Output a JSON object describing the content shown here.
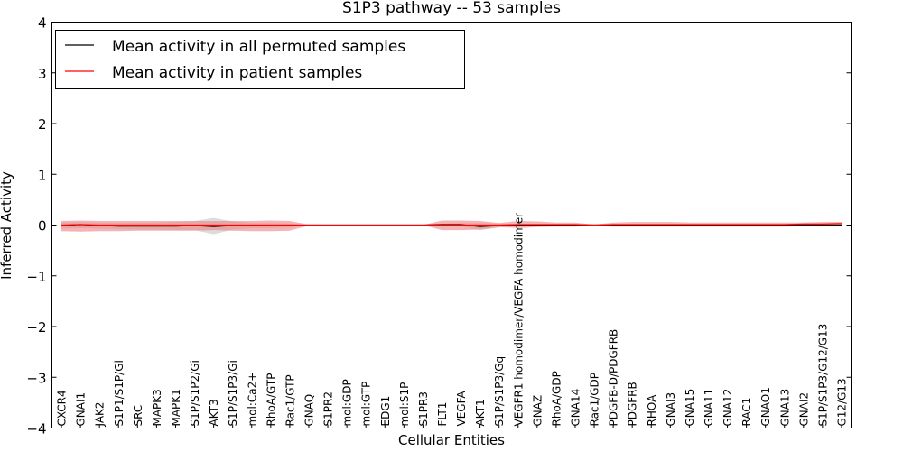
{
  "chart_data": {
    "type": "line",
    "title": "S1P3 pathway -- 53 samples",
    "xlabel": "Cellular Entities",
    "ylabel": "Inferred Activity",
    "ylim": [
      -4,
      4
    ],
    "yticks": [
      -4,
      -3,
      -2,
      -1,
      0,
      1,
      2,
      3,
      4
    ],
    "ytick_labels": [
      "−4",
      "−3",
      "−2",
      "−1",
      "0",
      "1",
      "2",
      "3",
      "4"
    ],
    "grid": false,
    "legend_position": "top-left",
    "categories": [
      "CXCR4",
      "GNAI1",
      "JAK2",
      "S1P1/S1P/Gi",
      "SRC",
      "MAPK3",
      "MAPK1",
      "S1P/S1P2/Gi",
      "AKT3",
      "S1P/S1P3/Gi",
      "mol:Ca2+",
      "RhoA/GTP",
      "Rac1/GTP",
      "GNAQ",
      "S1PR2",
      "mol:GDP",
      "mol:GTP",
      "EDG1",
      "mol:S1P",
      "S1PR3",
      "FLT1",
      "VEGFA",
      "AKT1",
      "S1P/S1P3/Gq",
      "VEGFR1 homodimer/VEGFA homodimer",
      "GNAZ",
      "RhoA/GDP",
      "GNA14",
      "Rac1/GDP",
      "PDGFB-D/PDGFRB",
      "PDGFRB",
      "RHOA",
      "GNAI3",
      "GNA15",
      "GNA11",
      "GNA12",
      "RAC1",
      "GNAO1",
      "GNA13",
      "GNAI2",
      "S1P/S1P3/G12/G13",
      "G12/G13"
    ],
    "series": [
      {
        "name": "Mean activity in all permuted samples",
        "color": "#000000",
        "values": [
          -0.01,
          0.01,
          -0.01,
          -0.02,
          -0.02,
          -0.02,
          -0.02,
          -0.01,
          -0.03,
          -0.01,
          -0.01,
          -0.01,
          -0.01,
          0,
          0,
          0,
          0,
          0,
          0,
          0,
          0.01,
          0.01,
          -0.03,
          -0.01,
          0,
          0,
          0,
          0,
          0,
          0,
          0,
          0,
          0,
          0,
          0,
          0,
          0,
          0,
          0,
          0,
          0,
          0
        ],
        "band_upper": [
          0.05,
          0.06,
          0.05,
          0.04,
          0.05,
          0.05,
          0.06,
          0.08,
          0.14,
          0.07,
          0.04,
          0.04,
          0.03,
          0,
          0,
          0,
          0,
          0,
          0,
          0,
          0.03,
          0.04,
          0.04,
          0.03,
          0.02,
          0.01,
          0.01,
          0.01,
          0.01,
          0.01,
          0.01,
          0.01,
          0.01,
          0.01,
          0.01,
          0.01,
          0.01,
          0.01,
          0.01,
          0.01,
          0.01,
          0.01
        ],
        "band_lower": [
          -0.07,
          -0.06,
          -0.07,
          -0.08,
          -0.09,
          -0.09,
          -0.1,
          -0.1,
          -0.18,
          -0.09,
          -0.06,
          -0.06,
          -0.05,
          0,
          0,
          0,
          0,
          0,
          0,
          0,
          -0.01,
          -0.02,
          -0.1,
          -0.05,
          -0.02,
          -0.01,
          -0.01,
          -0.01,
          -0.01,
          -0.01,
          -0.01,
          -0.01,
          -0.01,
          -0.01,
          -0.01,
          -0.01,
          -0.01,
          -0.01,
          -0.01,
          -0.01,
          -0.01,
          -0.01
        ]
      },
      {
        "name": "Mean activity in patient samples",
        "color": "#ff0000",
        "values": [
          0,
          0.01,
          0,
          0,
          0,
          0,
          0,
          0,
          0,
          0,
          0,
          0,
          0,
          0,
          0,
          0,
          0,
          0,
          0,
          0,
          0,
          0,
          0,
          0,
          0.01,
          0.01,
          0.01,
          0.01,
          0,
          0.01,
          0.01,
          0.01,
          0.01,
          0.01,
          0.01,
          0.01,
          0.01,
          0.01,
          0.01,
          0.02,
          0.02,
          0.03
        ],
        "band_upper": [
          0.08,
          0.09,
          0.08,
          0.08,
          0.08,
          0.08,
          0.08,
          0.08,
          0.08,
          0.08,
          0.08,
          0.09,
          0.08,
          0.01,
          0,
          0,
          0,
          0,
          0,
          0,
          0.09,
          0.09,
          0.08,
          0.04,
          0.08,
          0.07,
          0.05,
          0.05,
          0.01,
          0.05,
          0.06,
          0.06,
          0.06,
          0.05,
          0.05,
          0.05,
          0.05,
          0.05,
          0.05,
          0.05,
          0.06,
          0.06
        ],
        "band_lower": [
          -0.12,
          -0.13,
          -0.12,
          -0.12,
          -0.11,
          -0.11,
          -0.11,
          -0.11,
          -0.1,
          -0.11,
          -0.12,
          -0.12,
          -0.11,
          -0.01,
          0,
          0,
          0,
          0,
          0,
          0,
          -0.1,
          -0.1,
          -0.09,
          -0.04,
          -0.06,
          -0.04,
          -0.03,
          -0.03,
          -0.01,
          -0.03,
          -0.03,
          -0.03,
          -0.03,
          -0.03,
          -0.03,
          -0.03,
          -0.03,
          -0.03,
          -0.03,
          -0.02,
          -0.02,
          -0.01
        ]
      }
    ]
  }
}
